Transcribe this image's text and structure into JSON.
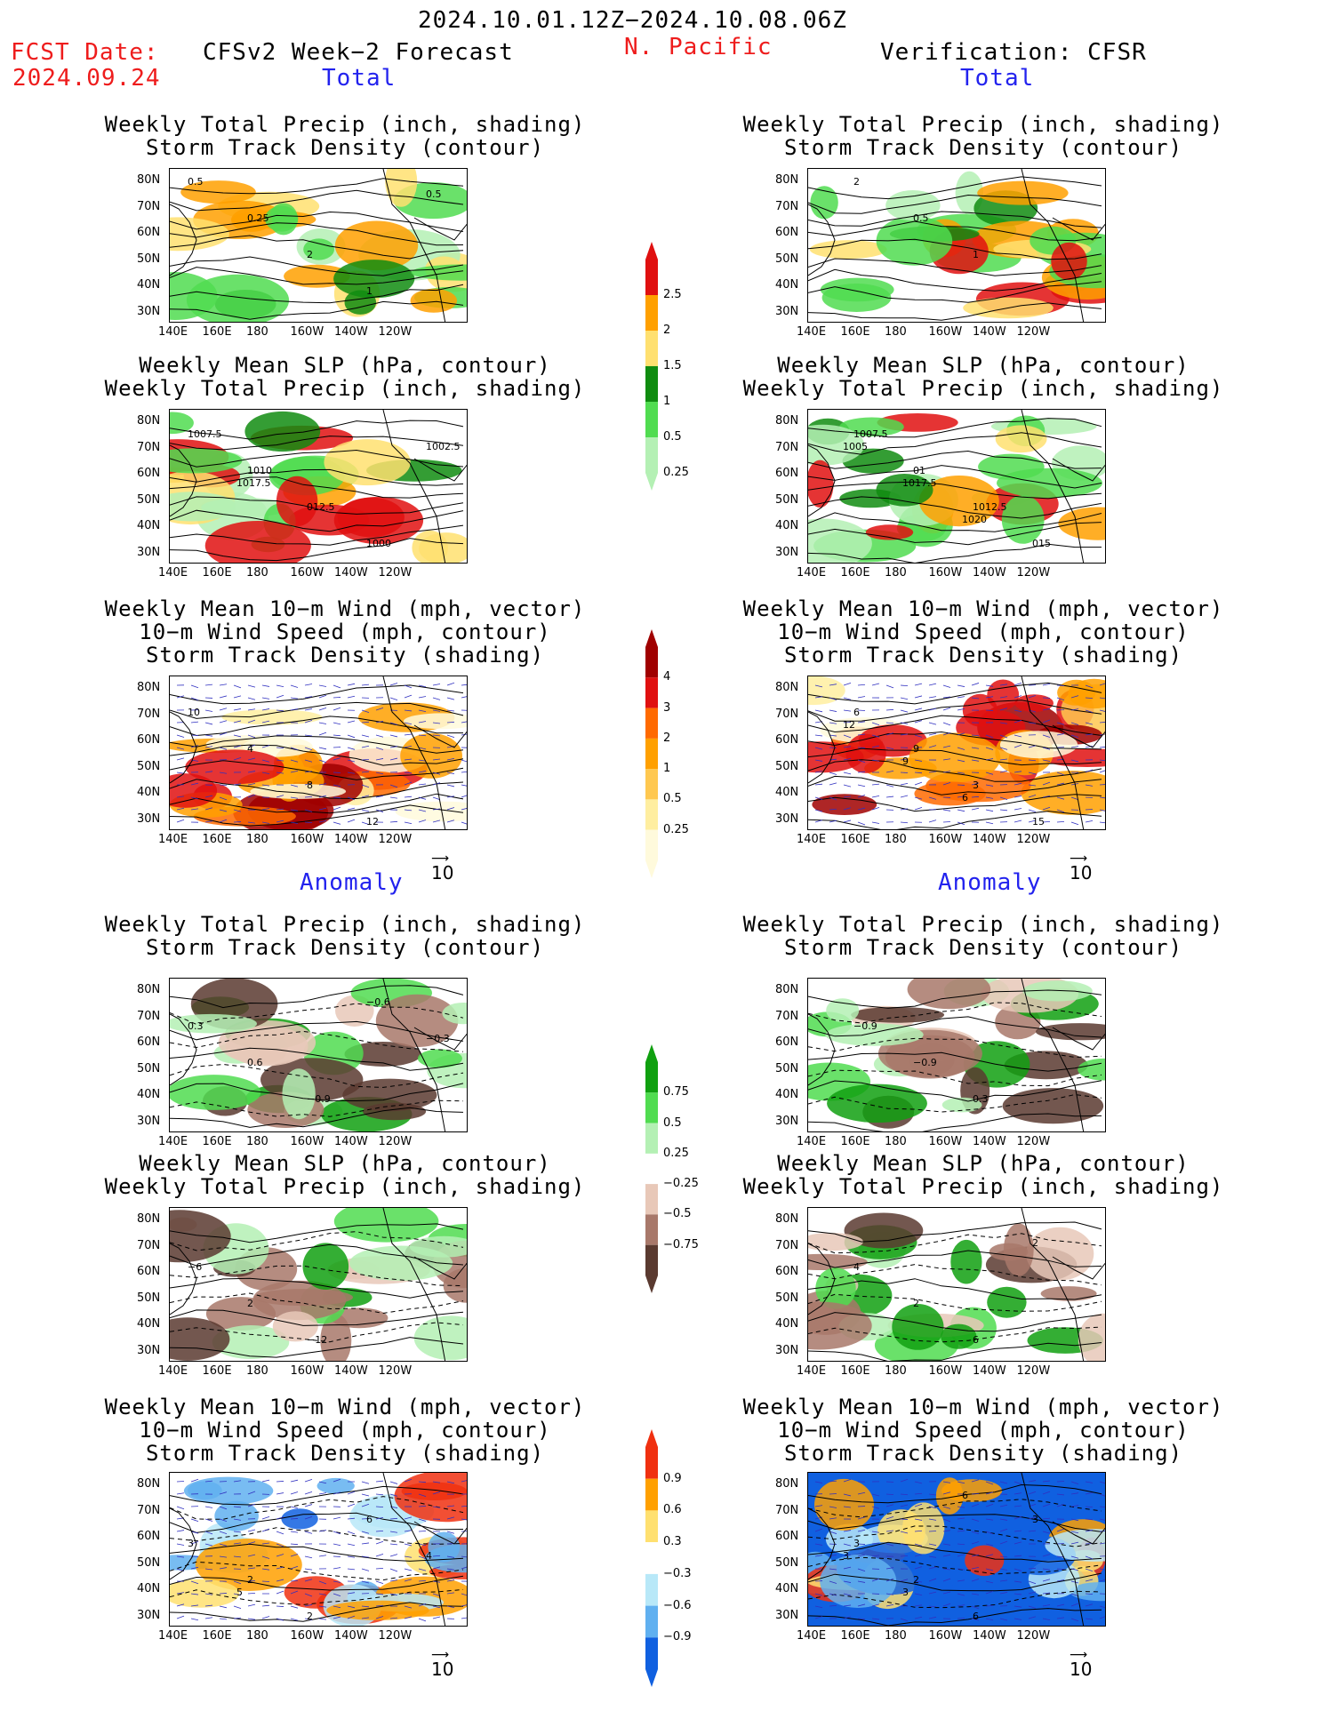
{
  "header": {
    "date_range": "2024.10.01.12Z−2024.10.08.06Z",
    "fcst_label": "FCST Date:",
    "fcst_date": "2024.09.24",
    "forecast_title": "CFSv2 Week−2 Forecast",
    "region": "N. Pacific",
    "verification": "Verification: CFSR"
  },
  "sections": {
    "total": "Total",
    "anomaly": "Anomaly"
  },
  "titles": {
    "precip_storm": [
      "Weekly Total Precip (inch, shading)",
      "Storm Track Density (contour)"
    ],
    "slp_precip": [
      "Weekly Mean SLP (hPa, contour)",
      "Weekly Total Precip (inch, shading)"
    ],
    "wind_storm": [
      "Weekly Mean 10−m Wind (mph, vector)",
      "10−m Wind Speed (mph, contour)",
      "Storm Track Density (shading)"
    ]
  },
  "axes": {
    "lat": [
      "80N",
      "70N",
      "60N",
      "50N",
      "40N",
      "30N"
    ],
    "lon": [
      "140E",
      "160E",
      "180",
      "160W",
      "140W",
      "120W"
    ]
  },
  "vector_scale": "10",
  "colorbars": [
    {
      "ticks": [
        "2.5",
        "2",
        "1.5",
        "1",
        "0.5",
        "0.25"
      ],
      "colors": [
        "#e01010",
        "#ffa000",
        "#ffe070",
        "#108c10",
        "#50dc50",
        "#b4f0b4"
      ]
    },
    {
      "ticks": [
        "4",
        "3",
        "2",
        "1",
        "0.5",
        "0.25"
      ],
      "colors": [
        "#a00000",
        "#e01010",
        "#ff6a00",
        "#ffa000",
        "#ffc850",
        "#ffeea0",
        "#fffadc"
      ]
    },
    {
      "ticks": [
        "0.75",
        "0.5",
        "0.25",
        "−0.25",
        "−0.5",
        "−0.75"
      ],
      "colors": [
        "#10a010",
        "#50dc50",
        "#b4f0b4",
        "#ffffff",
        "#e8c8b8",
        "#a8786a",
        "#5a3a30"
      ]
    },
    {
      "ticks": [
        "0.9",
        "0.6",
        "0.3",
        "−0.3",
        "−0.6",
        "−0.9"
      ],
      "colors": [
        "#f03010",
        "#ffa000",
        "#ffe070",
        "#ffffff",
        "#b8e8f8",
        "#60b0f0",
        "#1060e0"
      ]
    }
  ],
  "panel_labels": {
    "f_precip": [
      "0.5",
      "0.25",
      "2",
      "1",
      "0.5"
    ],
    "v_precip": [
      "2",
      "0.5",
      "1"
    ],
    "f_slp": [
      "1007.5",
      "1010",
      "012.5",
      "1000",
      "1002.5",
      "1017.5"
    ],
    "v_slp": [
      "1007.5",
      "01",
      "1012.5",
      "015",
      "1005",
      "1017.5",
      "1020"
    ],
    "f_wind": [
      "10",
      "4",
      "8",
      "12"
    ],
    "v_wind": [
      "6",
      "9",
      "3",
      "15",
      "12",
      "9",
      "6"
    ],
    "f_aprecip": [
      "0.3",
      "0.6",
      "−0.9",
      "−0.6",
      "−0.3"
    ],
    "v_aprecip": [
      "−0.9",
      "−0.9",
      "0.3"
    ],
    "f_aslp": [
      "−6",
      "2",
      "−12"
    ],
    "v_aslp": [
      "4",
      "2",
      "6",
      "2"
    ],
    "f_awind": [
      "3",
      "2",
      "2",
      "6",
      "4",
      "5"
    ],
    "v_awind": [
      "3",
      "2",
      "6",
      "3",
      "3",
      "3",
      "6"
    ]
  }
}
